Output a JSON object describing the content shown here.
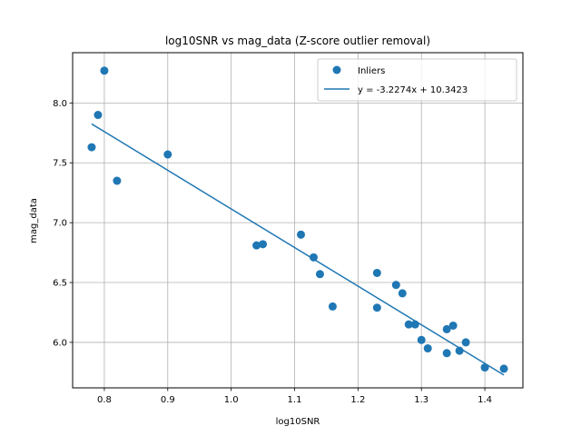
{
  "chart_data": {
    "type": "scatter",
    "title": "log10SNR vs mag_data (Z-score outlier removal)",
    "xlabel": "log10SNR",
    "ylabel": "mag_data",
    "xlim": [
      0.75,
      1.46
    ],
    "ylim": [
      5.62,
      8.42
    ],
    "xticks": [
      0.8,
      0.9,
      1.0,
      1.1,
      1.2,
      1.3,
      1.4
    ],
    "xtick_labels": [
      "0.8",
      "0.9",
      "1.0",
      "1.1",
      "1.2",
      "1.3",
      "1.4"
    ],
    "yticks": [
      6.0,
      6.5,
      7.0,
      7.5,
      8.0
    ],
    "ytick_labels": [
      "6.0",
      "6.5",
      "7.0",
      "7.5",
      "8.0"
    ],
    "grid": true,
    "legend_position": "upper-right",
    "series": [
      {
        "name": "Inliers",
        "kind": "scatter",
        "color": "#1f77b4",
        "points": [
          [
            0.78,
            7.63
          ],
          [
            0.79,
            7.9
          ],
          [
            0.8,
            8.27
          ],
          [
            0.82,
            7.35
          ],
          [
            0.9,
            7.57
          ],
          [
            1.04,
            6.81
          ],
          [
            1.05,
            6.82
          ],
          [
            1.11,
            6.9
          ],
          [
            1.13,
            6.71
          ],
          [
            1.14,
            6.57
          ],
          [
            1.16,
            6.3
          ],
          [
            1.23,
            6.58
          ],
          [
            1.23,
            6.29
          ],
          [
            1.26,
            6.48
          ],
          [
            1.27,
            6.41
          ],
          [
            1.28,
            6.15
          ],
          [
            1.29,
            6.15
          ],
          [
            1.3,
            6.02
          ],
          [
            1.31,
            5.95
          ],
          [
            1.34,
            6.11
          ],
          [
            1.34,
            5.91
          ],
          [
            1.35,
            6.14
          ],
          [
            1.36,
            5.93
          ],
          [
            1.37,
            6.0
          ],
          [
            1.4,
            5.79
          ],
          [
            1.43,
            5.78
          ]
        ]
      },
      {
        "name": "y = -3.2274x + 10.3423",
        "kind": "line",
        "color": "#1f77b4",
        "slope": -3.2274,
        "intercept": 10.3423,
        "x_range": [
          0.78,
          1.43
        ]
      }
    ]
  }
}
